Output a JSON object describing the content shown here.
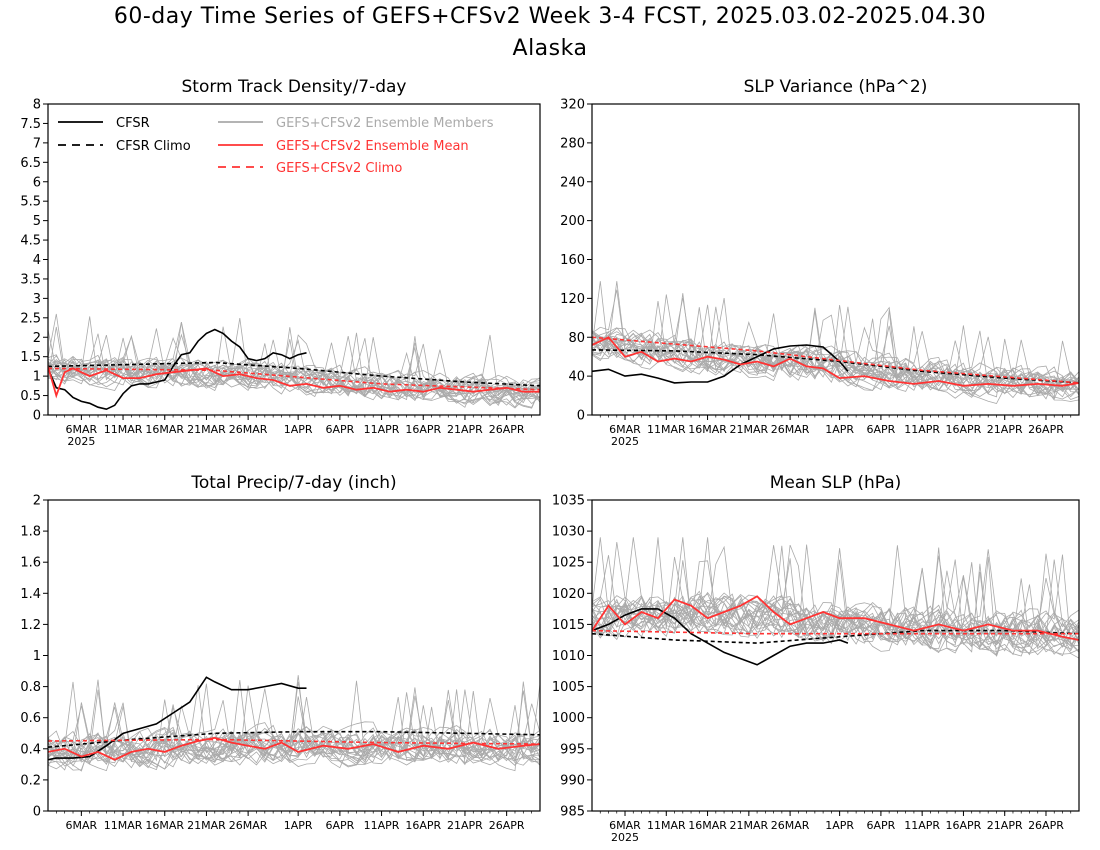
{
  "header": {
    "title": "60-day Time Series of GEFS+CFSv2 Week 3-4 FCST, 2025.03.02-2025.04.30",
    "subtitle": "Alaska"
  },
  "colors": {
    "observed": "#000000",
    "members": "#aaaaaa",
    "ensemble": "#ff3333",
    "background": "#ffffff"
  },
  "x_axis": {
    "start_date": "2025-03-02",
    "end_date": "2025-04-30",
    "tick_dates": [
      "2025-03-06",
      "2025-03-11",
      "2025-03-16",
      "2025-03-21",
      "2025-03-26",
      "2025-04-01",
      "2025-04-06",
      "2025-04-11",
      "2025-04-16",
      "2025-04-21",
      "2025-04-26"
    ],
    "tick_labels": [
      "6MAR",
      "11MAR",
      "16MAR",
      "21MAR",
      "26MAR",
      "1APR",
      "6APR",
      "11APR",
      "16APR",
      "21APR",
      "26APR"
    ],
    "year_label": "2025"
  },
  "legend": {
    "cfsr": "CFSR",
    "cfsr_climo": "CFSR Climo",
    "members": "GEFS+CFSv2 Ensemble Members",
    "mean": "GEFS+CFSv2 Ensemble Mean",
    "climo": "GEFS+CFSv2 Climo"
  },
  "chart_data": [
    {
      "type": "line",
      "title": "Storm Track Density/7-day",
      "ylim": [
        0,
        8
      ],
      "yticks": [
        "0",
        "0.5",
        "1",
        "1.5",
        "2",
        "2.5",
        "3",
        "3.5",
        "4",
        "4.5",
        "5",
        "5.5",
        "6",
        "6.5",
        "7",
        "7.5",
        "8"
      ],
      "legend_placement": "top",
      "grid": false,
      "series": [
        {
          "name": "CFSR",
          "style": "solid-black",
          "x": [
            "2025-03-02",
            "2025-03-03",
            "2025-03-04",
            "2025-03-05",
            "2025-03-06",
            "2025-03-07",
            "2025-03-08",
            "2025-03-09",
            "2025-03-10",
            "2025-03-11",
            "2025-03-12",
            "2025-03-13",
            "2025-03-14",
            "2025-03-15",
            "2025-03-16",
            "2025-03-17",
            "2025-03-18",
            "2025-03-19",
            "2025-03-20",
            "2025-03-21",
            "2025-03-22",
            "2025-03-23",
            "2025-03-24",
            "2025-03-25",
            "2025-03-26",
            "2025-03-27",
            "2025-03-28",
            "2025-03-29",
            "2025-03-30",
            "2025-03-31",
            "2025-04-01",
            "2025-04-02"
          ],
          "y": [
            1.2,
            0.7,
            0.65,
            0.45,
            0.35,
            0.3,
            0.2,
            0.15,
            0.25,
            0.55,
            0.75,
            0.8,
            0.8,
            0.85,
            0.9,
            1.25,
            1.55,
            1.6,
            1.9,
            2.1,
            2.2,
            2.1,
            1.9,
            1.75,
            1.45,
            1.4,
            1.45,
            1.6,
            1.55,
            1.45,
            1.55,
            1.6
          ]
        },
        {
          "name": "CFSR Climo",
          "style": "dashed-black",
          "x": [
            "2025-03-02",
            "2025-03-12",
            "2025-03-22",
            "2025-04-01",
            "2025-04-11",
            "2025-04-21",
            "2025-04-30"
          ],
          "y": [
            1.25,
            1.3,
            1.35,
            1.2,
            1.0,
            0.85,
            0.75
          ]
        },
        {
          "name": "GEFS+CFSv2 Ensemble Mean",
          "style": "solid-red",
          "x": [
            "2025-03-02",
            "2025-03-03",
            "2025-03-04",
            "2025-03-05",
            "2025-03-07",
            "2025-03-09",
            "2025-03-11",
            "2025-03-13",
            "2025-03-15",
            "2025-03-17",
            "2025-03-19",
            "2025-03-21",
            "2025-03-23",
            "2025-03-25",
            "2025-03-27",
            "2025-03-29",
            "2025-03-31",
            "2025-04-02",
            "2025-04-04",
            "2025-04-06",
            "2025-04-08",
            "2025-04-10",
            "2025-04-12",
            "2025-04-14",
            "2025-04-16",
            "2025-04-18",
            "2025-04-20",
            "2025-04-22",
            "2025-04-24",
            "2025-04-26",
            "2025-04-28",
            "2025-04-30"
          ],
          "y": [
            1.25,
            0.5,
            1.1,
            1.2,
            1.0,
            1.15,
            0.95,
            0.95,
            1.05,
            1.1,
            1.15,
            1.2,
            1.0,
            1.05,
            0.95,
            0.9,
            0.75,
            0.8,
            0.7,
            0.75,
            0.65,
            0.7,
            0.6,
            0.65,
            0.6,
            0.7,
            0.65,
            0.6,
            0.65,
            0.7,
            0.6,
            0.6
          ]
        },
        {
          "name": "GEFS+CFSv2 Climo",
          "style": "dashed-red",
          "x": [
            "2025-03-02",
            "2025-03-22",
            "2025-04-11",
            "2025-04-30"
          ],
          "y": [
            1.2,
            1.15,
            0.8,
            0.65
          ]
        }
      ],
      "members": {
        "name": "GEFS+CFSv2 Ensemble Members",
        "count": 24,
        "base": [
          1.2,
          1.1,
          1.05,
          0.85,
          0.65,
          0.55
        ],
        "spread": 0.55,
        "peak": 4.4
      }
    },
    {
      "type": "line",
      "title": "SLP Variance (hPa^2)",
      "ylim": [
        0,
        320
      ],
      "yticks": [
        "0",
        "40",
        "80",
        "120",
        "160",
        "200",
        "240",
        "280",
        "320"
      ],
      "grid": false,
      "series": [
        {
          "name": "CFSR",
          "style": "solid-black",
          "x": [
            "2025-03-02",
            "2025-03-04",
            "2025-03-06",
            "2025-03-08",
            "2025-03-10",
            "2025-03-12",
            "2025-03-14",
            "2025-03-16",
            "2025-03-18",
            "2025-03-20",
            "2025-03-22",
            "2025-03-24",
            "2025-03-26",
            "2025-03-28",
            "2025-03-30",
            "2025-04-01",
            "2025-04-02"
          ],
          "y": [
            45,
            47,
            40,
            42,
            38,
            33,
            34,
            34,
            40,
            52,
            60,
            68,
            71,
            72,
            70,
            55,
            45
          ]
        },
        {
          "name": "CFSR Climo",
          "style": "dashed-black",
          "x": [
            "2025-03-02",
            "2025-03-12",
            "2025-03-22",
            "2025-04-01",
            "2025-04-11",
            "2025-04-21",
            "2025-04-30"
          ],
          "y": [
            67,
            66,
            62,
            55,
            45,
            38,
            33
          ]
        },
        {
          "name": "GEFS+CFSv2 Ensemble Mean",
          "style": "solid-red",
          "x": [
            "2025-03-02",
            "2025-03-04",
            "2025-03-06",
            "2025-03-08",
            "2025-03-10",
            "2025-03-12",
            "2025-03-14",
            "2025-03-16",
            "2025-03-18",
            "2025-03-20",
            "2025-03-22",
            "2025-03-24",
            "2025-03-26",
            "2025-03-28",
            "2025-03-30",
            "2025-04-01",
            "2025-04-04",
            "2025-04-07",
            "2025-04-10",
            "2025-04-13",
            "2025-04-16",
            "2025-04-19",
            "2025-04-22",
            "2025-04-25",
            "2025-04-28",
            "2025-04-30"
          ],
          "y": [
            72,
            80,
            60,
            65,
            55,
            58,
            55,
            60,
            57,
            52,
            55,
            50,
            58,
            50,
            48,
            38,
            40,
            35,
            32,
            35,
            30,
            32,
            30,
            32,
            30,
            33
          ]
        },
        {
          "name": "GEFS+CFSv2 Climo",
          "style": "dashed-red",
          "x": [
            "2025-03-02",
            "2025-03-22",
            "2025-04-11",
            "2025-04-30"
          ],
          "y": [
            80,
            66,
            46,
            33
          ]
        }
      ],
      "members": {
        "name": "GEFS+CFSv2 Ensemble Members",
        "count": 24,
        "base": [
          75,
          62,
          55,
          45,
          35,
          30
        ],
        "spread": 25,
        "peak": 170
      }
    },
    {
      "type": "line",
      "title": "Total Precip/7-day (inch)",
      "ylim": [
        0,
        2
      ],
      "yticks": [
        "0",
        "0.2",
        "0.4",
        "0.6",
        "0.8",
        "1",
        "1.2",
        "1.4",
        "1.6",
        "1.8",
        "2"
      ],
      "grid": false,
      "series": [
        {
          "name": "CFSR",
          "style": "solid-black",
          "x": [
            "2025-03-02",
            "2025-03-03",
            "2025-03-05",
            "2025-03-07",
            "2025-03-09",
            "2025-03-11",
            "2025-03-13",
            "2025-03-15",
            "2025-03-17",
            "2025-03-19",
            "2025-03-21",
            "2025-03-22",
            "2025-03-24",
            "2025-03-26",
            "2025-03-28",
            "2025-03-30",
            "2025-04-01",
            "2025-04-02"
          ],
          "y": [
            0.33,
            0.34,
            0.34,
            0.35,
            0.42,
            0.5,
            0.53,
            0.56,
            0.63,
            0.7,
            0.86,
            0.83,
            0.78,
            0.78,
            0.8,
            0.82,
            0.79,
            0.79
          ]
        },
        {
          "name": "CFSR Climo",
          "style": "dashed-black",
          "x": [
            "2025-03-02",
            "2025-03-12",
            "2025-03-22",
            "2025-04-01",
            "2025-04-11",
            "2025-04-21",
            "2025-04-30"
          ],
          "y": [
            0.41,
            0.46,
            0.5,
            0.51,
            0.51,
            0.5,
            0.49
          ]
        },
        {
          "name": "GEFS+CFSv2 Ensemble Mean",
          "style": "solid-red",
          "x": [
            "2025-03-02",
            "2025-03-04",
            "2025-03-06",
            "2025-03-08",
            "2025-03-10",
            "2025-03-12",
            "2025-03-14",
            "2025-03-16",
            "2025-03-18",
            "2025-03-20",
            "2025-03-22",
            "2025-03-24",
            "2025-03-26",
            "2025-03-28",
            "2025-03-30",
            "2025-04-01",
            "2025-04-04",
            "2025-04-07",
            "2025-04-10",
            "2025-04-13",
            "2025-04-16",
            "2025-04-19",
            "2025-04-22",
            "2025-04-25",
            "2025-04-28",
            "2025-04-30"
          ],
          "y": [
            0.38,
            0.4,
            0.35,
            0.38,
            0.33,
            0.38,
            0.4,
            0.38,
            0.42,
            0.45,
            0.47,
            0.44,
            0.42,
            0.4,
            0.44,
            0.38,
            0.42,
            0.4,
            0.43,
            0.38,
            0.42,
            0.4,
            0.44,
            0.4,
            0.42,
            0.43
          ]
        },
        {
          "name": "GEFS+CFSv2 Climo",
          "style": "dashed-red",
          "x": [
            "2025-03-02",
            "2025-03-22",
            "2025-04-11",
            "2025-04-30"
          ],
          "y": [
            0.45,
            0.46,
            0.44,
            0.43
          ]
        }
      ],
      "members": {
        "name": "GEFS+CFSv2 Ensemble Members",
        "count": 24,
        "base": [
          0.38,
          0.4,
          0.42,
          0.42,
          0.41,
          0.41
        ],
        "spread": 0.17,
        "peak": 0.88
      }
    },
    {
      "type": "line",
      "title": "Mean SLP (hPa)",
      "ylim": [
        985,
        1035
      ],
      "yticks": [
        "985",
        "990",
        "995",
        "1000",
        "1005",
        "1010",
        "1015",
        "1020",
        "1025",
        "1030",
        "1035"
      ],
      "grid": false,
      "series": [
        {
          "name": "CFSR",
          "style": "solid-black",
          "x": [
            "2025-03-02",
            "2025-03-04",
            "2025-03-06",
            "2025-03-08",
            "2025-03-10",
            "2025-03-12",
            "2025-03-14",
            "2025-03-16",
            "2025-03-18",
            "2025-03-20",
            "2025-03-22",
            "2025-03-24",
            "2025-03-26",
            "2025-03-28",
            "2025-03-30",
            "2025-04-01",
            "2025-04-02"
          ],
          "y": [
            1014,
            1015,
            1016.5,
            1017.5,
            1017.5,
            1016,
            1013.5,
            1012,
            1010.5,
            1009.5,
            1008.5,
            1010,
            1011.5,
            1012,
            1012,
            1012.5,
            1012
          ]
        },
        {
          "name": "CFSR Climo",
          "style": "dashed-black",
          "x": [
            "2025-03-02",
            "2025-03-12",
            "2025-03-22",
            "2025-04-01",
            "2025-04-11",
            "2025-04-21",
            "2025-04-30"
          ],
          "y": [
            1013.5,
            1012.5,
            1012,
            1013,
            1014,
            1014,
            1013.5
          ]
        },
        {
          "name": "GEFS+CFSv2 Ensemble Mean",
          "style": "solid-red",
          "x": [
            "2025-03-02",
            "2025-03-04",
            "2025-03-06",
            "2025-03-08",
            "2025-03-10",
            "2025-03-12",
            "2025-03-14",
            "2025-03-16",
            "2025-03-18",
            "2025-03-20",
            "2025-03-22",
            "2025-03-24",
            "2025-03-26",
            "2025-03-28",
            "2025-03-30",
            "2025-04-01",
            "2025-04-04",
            "2025-04-07",
            "2025-04-10",
            "2025-04-13",
            "2025-04-16",
            "2025-04-19",
            "2025-04-22",
            "2025-04-25",
            "2025-04-28",
            "2025-04-30"
          ],
          "y": [
            1014,
            1018,
            1015,
            1017,
            1016,
            1019,
            1018,
            1016,
            1017,
            1018,
            1019.5,
            1017,
            1015,
            1016,
            1017,
            1016,
            1016,
            1015,
            1014,
            1015,
            1014,
            1015,
            1014,
            1014,
            1013,
            1012.5
          ]
        },
        {
          "name": "GEFS+CFSv2 Climo",
          "style": "dashed-red",
          "x": [
            "2025-03-02",
            "2025-03-22",
            "2025-04-11",
            "2025-04-30"
          ],
          "y": [
            1014,
            1013.5,
            1013.5,
            1013.5
          ]
        }
      ],
      "members": {
        "name": "GEFS+CFSv2 Ensemble Members",
        "count": 24,
        "base": [
          1016,
          1017,
          1016,
          1015,
          1014,
          1013.5
        ],
        "spread": 5,
        "peak": 1029
      }
    }
  ]
}
